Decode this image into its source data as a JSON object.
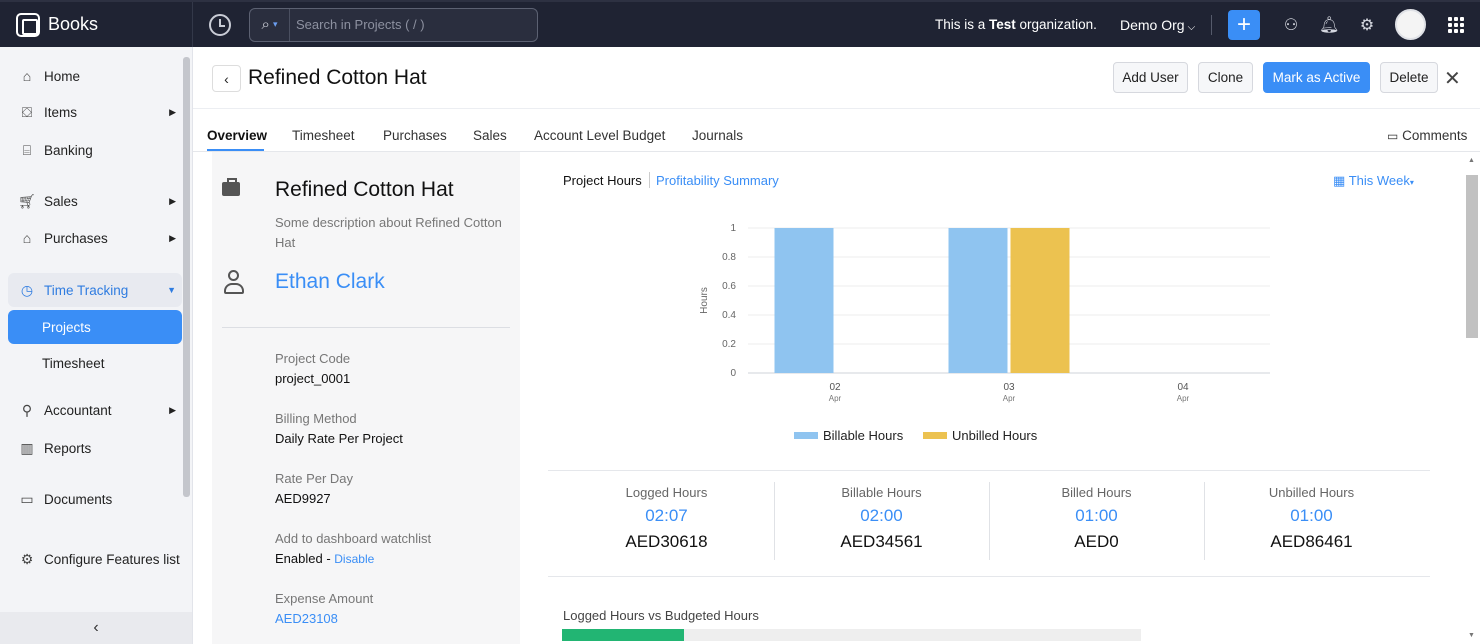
{
  "topbar": {
    "brand": "Books",
    "search_placeholder": "Search in Projects ( / )",
    "org_note_prefix": "This is a ",
    "org_note_bold": "Test",
    "org_note_suffix": " organization.",
    "org_name": "Demo Org",
    "plus": "+",
    "icons": [
      "history-icon",
      "search-icon",
      "users-icon",
      "bell-icon",
      "gear-icon",
      "apps-grid-icon"
    ]
  },
  "sidebar": {
    "items": [
      {
        "label": "Home",
        "icon": "home-icon"
      },
      {
        "label": "Items",
        "icon": "items-icon"
      },
      {
        "label": "Banking",
        "icon": "bank-icon"
      },
      {
        "label": "Sales",
        "icon": "cart-icon"
      },
      {
        "label": "Purchases",
        "icon": "bag-icon"
      },
      {
        "label": "Time Tracking",
        "icon": "clock-icon"
      },
      {
        "label": "Projects"
      },
      {
        "label": "Timesheet"
      },
      {
        "label": "Accountant",
        "icon": "accountant-icon"
      },
      {
        "label": "Reports",
        "icon": "reports-icon"
      },
      {
        "label": "Documents",
        "icon": "folder-icon"
      },
      {
        "label": "Configure Features list",
        "icon": "configure-icon"
      }
    ],
    "collapse": "‹"
  },
  "header": {
    "title": "Refined Cotton Hat",
    "buttons": {
      "add_user": "Add User",
      "clone": "Clone",
      "mark_active": "Mark as Active",
      "delete": "Delete"
    }
  },
  "tabs": {
    "items": [
      "Overview",
      "Timesheet",
      "Purchases",
      "Sales",
      "Account Level Budget",
      "Journals"
    ],
    "comments": "Comments"
  },
  "project": {
    "name": "Refined Cotton Hat",
    "description": "Some description about Refined Cotton Hat",
    "customer": "Ethan Clark",
    "fields": {
      "code_label": "Project Code",
      "code_value": "project_0001",
      "billing_label": "Billing Method",
      "billing_value": "Daily Rate Per Project",
      "rate_label": "Rate Per Day",
      "rate_value": "AED9927",
      "watch_label": "Add to dashboard watchlist",
      "watch_value": "Enabled - ",
      "watch_link": "Disable",
      "expense_label": "Expense Amount",
      "expense_value": "AED23108"
    }
  },
  "overview": {
    "tab_hours": "Project Hours",
    "tab_profit": "Profitability Summary",
    "period": "This Week",
    "stats": [
      {
        "label": "Logged Hours",
        "time": "02:07",
        "amount": "AED30618"
      },
      {
        "label": "Billable Hours",
        "time": "02:00",
        "amount": "AED34561"
      },
      {
        "label": "Billed Hours",
        "time": "01:00",
        "amount": "AED0"
      },
      {
        "label": "Unbilled Hours",
        "time": "01:00",
        "amount": "AED86461"
      }
    ],
    "budget_title": "Logged Hours vs Budgeted Hours",
    "budget_fill_fraction": 0.21
  },
  "chart_data": {
    "type": "bar",
    "categories": [
      "02",
      "03",
      "04"
    ],
    "category_sub": [
      "Apr",
      "Apr",
      "Apr"
    ],
    "series": [
      {
        "name": "Billable Hours",
        "values": [
          1,
          1,
          0
        ],
        "color": "#8fc4f0"
      },
      {
        "name": "Unbilled Hours",
        "values": [
          0,
          1,
          0
        ],
        "color": "#ecc250"
      }
    ],
    "ylabel": "Hours",
    "ylim": [
      0,
      1
    ],
    "yticks": [
      "1",
      "0.8",
      "0.6",
      "0.4",
      "0.2",
      "0"
    ],
    "grid": true,
    "legend": "bottom"
  }
}
